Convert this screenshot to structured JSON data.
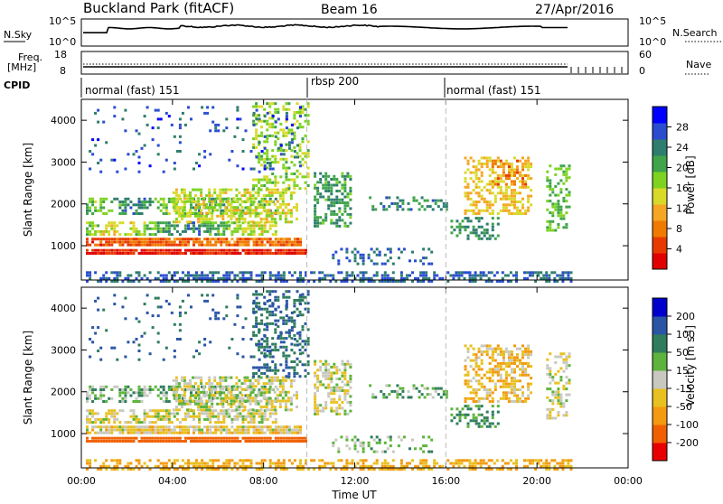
{
  "header": {
    "station": "Buckland Park (fitACF)",
    "beam": "Beam 16",
    "date": "27/Apr/2016"
  },
  "nsky_panel": {
    "left_label": "N.Sky",
    "left_ticks": [
      "10^5",
      "10^0"
    ],
    "right_ticks": [
      "10^5",
      "10^0"
    ],
    "right_label": "N.Search"
  },
  "freq_panel": {
    "left_label_1": "Freq.",
    "left_label_2": "[MHz]",
    "left_ticks": [
      "18",
      "8"
    ],
    "right_ticks": [
      "60",
      "0"
    ],
    "right_label": "Nave"
  },
  "cpid": {
    "label": "CPID",
    "modes": [
      "normal (fast) 151",
      "rbsp 200",
      "normal (fast) 151"
    ]
  },
  "axes": {
    "ylabel": "Slant Range [km]",
    "xlabel": "Time UT",
    "yticks": [
      "1000",
      "2000",
      "3000",
      "4000"
    ],
    "xticks": [
      "00:00",
      "04:00",
      "08:00",
      "12:00",
      "16:00",
      "20:00",
      "00:00"
    ]
  },
  "colorbars": {
    "power": {
      "label": "Power [dB]",
      "ticks": [
        "4",
        "8",
        "12",
        "16",
        "20",
        "24",
        "28"
      ],
      "colors": [
        "#0000ff",
        "#2a4dd0",
        "#2e7d6e",
        "#3fa44a",
        "#7ed321",
        "#d9d92a",
        "#f5a623",
        "#f07a00",
        "#e83a00",
        "#e00000"
      ]
    },
    "velocity": {
      "label": "Velocity [m s",
      "label_sup": "-1",
      "label_end": "]",
      "ticks": [
        "200",
        "100",
        "50",
        "15",
        "-15",
        "-50",
        "-100",
        "-200"
      ],
      "colors": [
        "#0000cc",
        "#2a55a5",
        "#2f7d5c",
        "#5db33b",
        "#c8c8c0",
        "#e8c020",
        "#f39a10",
        "#f06000",
        "#e80000"
      ]
    }
  },
  "chart_data": {
    "type": "heatmap",
    "x_range_hours": [
      0,
      24
    ],
    "y_range_km": [
      180,
      4500
    ],
    "cpid_boundaries_hours": [
      9.9,
      16.0
    ],
    "power_range_db": [
      0,
      30
    ],
    "velocity_range_ms": [
      -250,
      250
    ],
    "grid": false
  }
}
